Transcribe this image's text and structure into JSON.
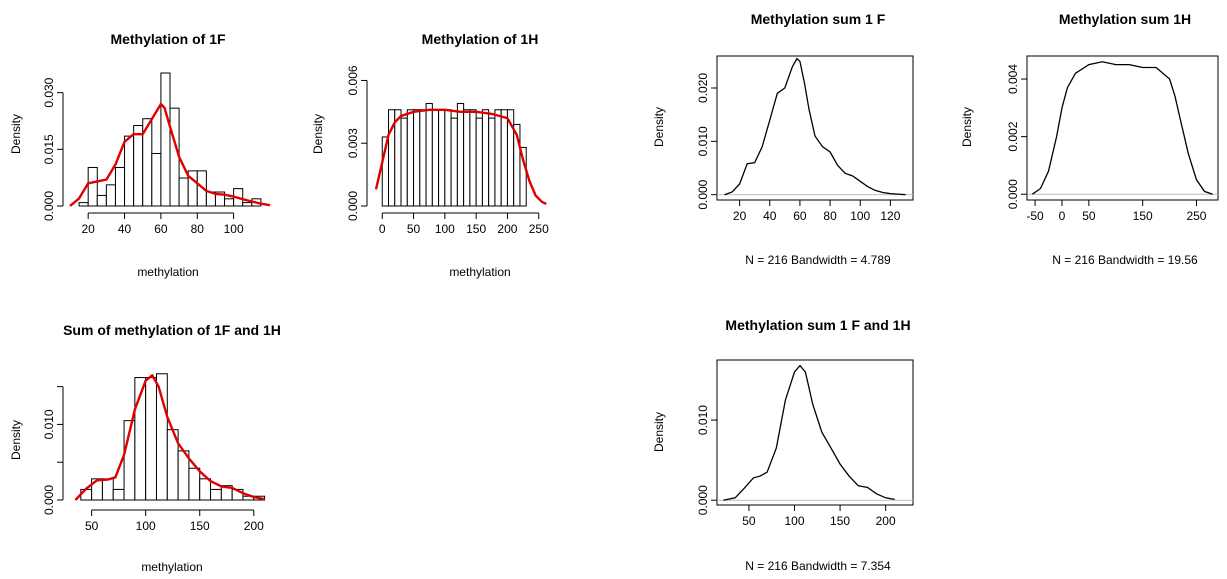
{
  "chart_data": [
    {
      "id": "hist1F",
      "type": "bar",
      "title": "Methylation of 1F",
      "xlabel": "methylation",
      "ylabel": "Density",
      "xlim": [
        10,
        120
      ],
      "ylim": [
        0,
        0.036
      ],
      "x_ticks": [
        20,
        40,
        60,
        80,
        100
      ],
      "y_ticks": [
        0.0,
        0.015,
        0.03
      ],
      "y_tick_labels": [
        "0.000",
        "0.015",
        "0.030"
      ],
      "bin_edges": [
        15,
        20,
        25,
        30,
        35,
        40,
        45,
        50,
        55,
        60,
        65,
        70,
        75,
        80,
        85,
        90,
        95,
        100,
        105,
        110,
        115
      ],
      "values": [
        0.0009,
        0.0102,
        0.0028,
        0.0056,
        0.0102,
        0.0185,
        0.0213,
        0.0231,
        0.0139,
        0.0352,
        0.0259,
        0.0074,
        0.0093,
        0.0093,
        0.0037,
        0.0037,
        0.0019,
        0.0046,
        0.0009,
        0.0019,
        0.0009
      ],
      "density_x": [
        10,
        15,
        20,
        25,
        30,
        35,
        40,
        45,
        50,
        55,
        60,
        62,
        65,
        70,
        75,
        80,
        85,
        90,
        95,
        100,
        105,
        110,
        115,
        120
      ],
      "density_y": [
        0.0,
        0.002,
        0.006,
        0.0065,
        0.007,
        0.011,
        0.017,
        0.019,
        0.019,
        0.023,
        0.027,
        0.026,
        0.021,
        0.013,
        0.008,
        0.006,
        0.004,
        0.0032,
        0.003,
        0.0025,
        0.0018,
        0.0012,
        0.0006,
        0.0002
      ]
    },
    {
      "id": "hist1H",
      "type": "bar",
      "title": "Methylation of 1H",
      "xlabel": "methylation",
      "ylabel": "Density",
      "xlim": [
        -10,
        260
      ],
      "ylim": [
        0,
        0.0065
      ],
      "x_ticks": [
        0,
        50,
        100,
        150,
        200,
        250
      ],
      "y_ticks": [
        0.0,
        0.003,
        0.006
      ],
      "y_tick_labels": [
        "0.000",
        "0.003",
        "0.006"
      ],
      "bin_edges": [
        0,
        10,
        20,
        30,
        40,
        50,
        60,
        70,
        80,
        90,
        100,
        110,
        120,
        130,
        140,
        150,
        160,
        170,
        180,
        190,
        200,
        210,
        220,
        230
      ],
      "values": [
        0.0033,
        0.0046,
        0.0046,
        0.0042,
        0.0046,
        0.0046,
        0.0046,
        0.0049,
        0.0046,
        0.0046,
        0.0046,
        0.0042,
        0.0049,
        0.0046,
        0.0046,
        0.0042,
        0.0046,
        0.0042,
        0.0046,
        0.0046,
        0.0046,
        0.0039,
        0.0028
      ],
      "density_x": [
        -10,
        0,
        10,
        20,
        30,
        50,
        75,
        100,
        125,
        150,
        175,
        200,
        215,
        225,
        235,
        245,
        255,
        262
      ],
      "density_y": [
        0.0008,
        0.0021,
        0.0034,
        0.004,
        0.0043,
        0.0045,
        0.0046,
        0.0046,
        0.0045,
        0.0045,
        0.0044,
        0.0042,
        0.0034,
        0.0022,
        0.0012,
        0.0005,
        0.0002,
        0.0001
      ]
    },
    {
      "id": "histSum",
      "type": "bar",
      "title": "Sum of methylation of 1F and 1H",
      "xlabel": "methylation",
      "ylabel": "Density",
      "xlim": [
        30,
        215
      ],
      "ylim": [
        0,
        0.0172
      ],
      "x_ticks": [
        50,
        100,
        150,
        200
      ],
      "y_ticks": [
        0.0,
        0.01
      ],
      "y_tick_labels": [
        "0.000",
        "0.010"
      ],
      "extra_ticks": [
        0.005,
        0.015
      ],
      "bin_edges": [
        40,
        50,
        60,
        70,
        80,
        90,
        100,
        110,
        120,
        130,
        140,
        150,
        160,
        170,
        180,
        190,
        200,
        210
      ],
      "values": [
        0.0014,
        0.0028,
        0.0028,
        0.0014,
        0.0105,
        0.0162,
        0.0162,
        0.0167,
        0.0093,
        0.0065,
        0.0042,
        0.0028,
        0.0014,
        0.0019,
        0.0014,
        0.0005,
        0.0005
      ],
      "density_x": [
        35,
        45,
        55,
        65,
        72,
        80,
        90,
        100,
        106,
        112,
        120,
        130,
        140,
        150,
        160,
        170,
        180,
        190,
        200,
        210
      ],
      "density_y": [
        0.0,
        0.0015,
        0.0026,
        0.0027,
        0.003,
        0.006,
        0.012,
        0.0158,
        0.0165,
        0.015,
        0.011,
        0.0075,
        0.0055,
        0.0038,
        0.0025,
        0.0018,
        0.0016,
        0.0009,
        0.0004,
        0.0001
      ]
    },
    {
      "id": "dens1F",
      "type": "line",
      "title": "Methylation sum 1 F",
      "xlabel": "N = 216   Bandwidth = 4.789",
      "ylabel": "Density",
      "xlim": [
        5,
        135
      ],
      "ylim": [
        -0.001,
        0.026
      ],
      "x_ticks": [
        20,
        40,
        60,
        80,
        100,
        120
      ],
      "y_ticks": [
        0.0,
        0.01,
        0.02
      ],
      "y_tick_labels": [
        "0.000",
        "0.010",
        "0.020"
      ],
      "x": [
        10,
        15,
        20,
        25,
        30,
        35,
        40,
        45,
        50,
        55,
        58,
        60,
        63,
        66,
        70,
        75,
        80,
        85,
        90,
        95,
        100,
        105,
        110,
        115,
        120,
        125,
        130
      ],
      "y": [
        0.0,
        0.0005,
        0.002,
        0.0058,
        0.006,
        0.009,
        0.014,
        0.019,
        0.02,
        0.024,
        0.0255,
        0.025,
        0.021,
        0.016,
        0.011,
        0.009,
        0.008,
        0.0055,
        0.004,
        0.0035,
        0.0025,
        0.0015,
        0.0008,
        0.0004,
        0.0002,
        0.0001,
        0.0
      ]
    },
    {
      "id": "dens1H",
      "type": "line",
      "title": "Methylation sum 1H",
      "xlabel": "N = 216   Bandwidth = 19.56",
      "ylabel": "Density",
      "xlim": [
        -65,
        290
      ],
      "ylim": [
        -0.0002,
        0.0048
      ],
      "x_ticks": [
        -50,
        0,
        50,
        150,
        250
      ],
      "y_ticks": [
        0.0,
        0.002,
        0.004
      ],
      "y_tick_labels": [
        "0.000",
        "0.002",
        "0.004"
      ],
      "x": [
        -55,
        -40,
        -25,
        -10,
        0,
        10,
        25,
        50,
        75,
        100,
        125,
        150,
        175,
        200,
        210,
        220,
        235,
        250,
        265,
        280
      ],
      "y": [
        0.0,
        0.0002,
        0.0008,
        0.002,
        0.003,
        0.0037,
        0.0042,
        0.0045,
        0.0046,
        0.0045,
        0.0045,
        0.0044,
        0.0044,
        0.004,
        0.0034,
        0.0026,
        0.0014,
        0.0005,
        0.0001,
        0.0
      ]
    },
    {
      "id": "densSum",
      "type": "line",
      "title": "Methylation sum 1 F and 1H",
      "xlabel": "N = 216   Bandwidth = 7.354",
      "ylabel": "Density",
      "xlim": [
        15,
        230
      ],
      "ylim": [
        -0.0006,
        0.0175
      ],
      "x_ticks": [
        50,
        100,
        150,
        200
      ],
      "y_ticks": [
        0.0,
        0.01
      ],
      "y_tick_labels": [
        "0.000",
        "0.010"
      ],
      "x": [
        22,
        35,
        45,
        55,
        62,
        70,
        80,
        90,
        100,
        106,
        112,
        120,
        130,
        140,
        150,
        160,
        170,
        180,
        190,
        200,
        210
      ],
      "y": [
        0.0,
        0.0003,
        0.0015,
        0.0028,
        0.003,
        0.0035,
        0.0065,
        0.0125,
        0.016,
        0.0168,
        0.016,
        0.012,
        0.0085,
        0.0065,
        0.0045,
        0.003,
        0.0018,
        0.0016,
        0.0008,
        0.0003,
        0.0001
      ]
    }
  ]
}
